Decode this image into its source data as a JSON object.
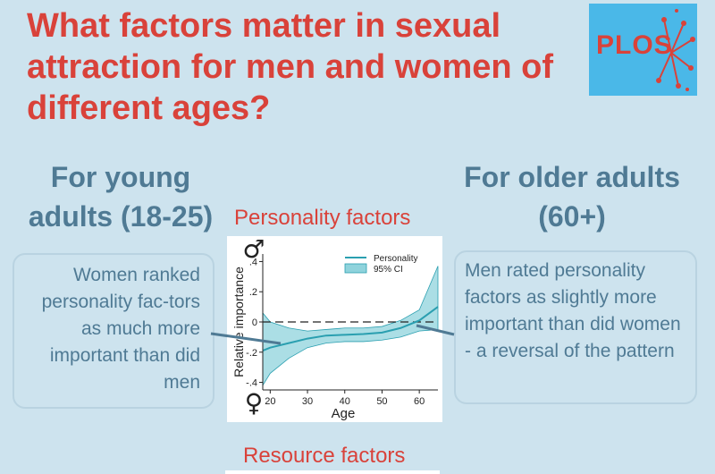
{
  "title": "What factors matter in sexual attraction for men and women of different ages?",
  "logo": {
    "text": "PLOS"
  },
  "young": {
    "heading": "For young adults (18-25)",
    "note": "Women ranked personality fac-tors as much more important than did men"
  },
  "older": {
    "heading": "For older adults (60+)",
    "note": "Men rated personality factors as slightly more important than did women - a reversal of the pattern"
  },
  "panels": {
    "personality": "Personality factors",
    "resource": "Resource factors"
  },
  "colors": {
    "title": "#d9423a",
    "heading": "#4f7a94",
    "background": "#cde3ee",
    "line": "#2a9fb0",
    "band": "#8fd3dc",
    "logo_bg": "#4ab8e8"
  },
  "chart_data": {
    "type": "line",
    "x": [
      18,
      20,
      25,
      30,
      35,
      40,
      45,
      50,
      55,
      60,
      65
    ],
    "series": [
      {
        "name": "Personality",
        "values": [
          -0.19,
          -0.17,
          -0.14,
          -0.11,
          -0.09,
          -0.085,
          -0.08,
          -0.07,
          -0.04,
          0.01,
          0.1
        ]
      },
      {
        "name": "95% CI",
        "lower": [
          -0.42,
          -0.34,
          -0.24,
          -0.17,
          -0.14,
          -0.13,
          -0.13,
          -0.12,
          -0.1,
          -0.06,
          -0.05
        ],
        "upper": [
          0.06,
          0.0,
          -0.04,
          -0.06,
          -0.05,
          -0.04,
          -0.04,
          -0.03,
          0.01,
          0.08,
          0.37
        ]
      }
    ],
    "xlabel": "Age",
    "ylabel": "Relative importance",
    "xticks": [
      "20",
      "30",
      "40",
      "50",
      "60"
    ],
    "yticks": [
      ".4",
      ".2",
      "0",
      "-.2",
      "-.4"
    ],
    "top_marker": "♂",
    "bottom_marker": "♀",
    "xlim": [
      18,
      65
    ],
    "ylim": [
      -0.45,
      0.45
    ],
    "reference_line": 0,
    "legend_position": "top-right"
  }
}
